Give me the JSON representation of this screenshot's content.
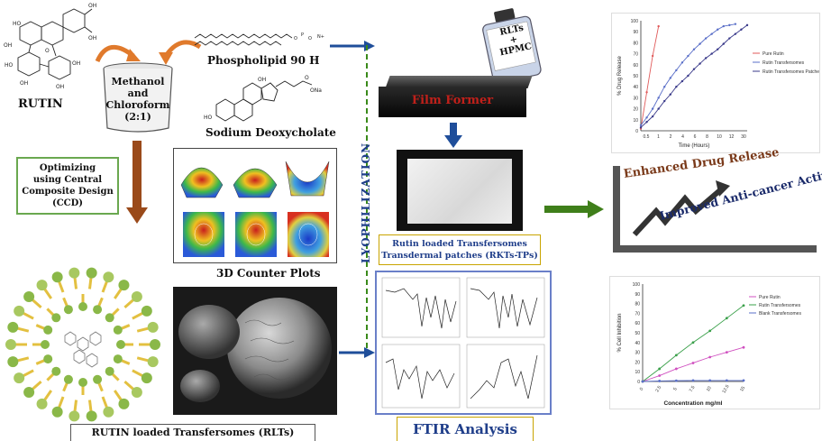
{
  "left": {
    "rutin_label": "RUTIN",
    "beaker_text": [
      "Methanol",
      "and",
      "Chloroform",
      "(2:1)"
    ],
    "phospholipid_label": "Phospholipid 90 H",
    "deoxycholate_label": "Sodium Deoxycholate",
    "ccd_box": [
      "Optimizing",
      "using Central",
      "Composite Design",
      "(CCD)"
    ],
    "contour_caption": "3D Counter Plots",
    "rlt_caption": "RUTIN loaded Transfersomes (RLTs)"
  },
  "middle": {
    "lyophilization_label": "LYOPHILIZATION",
    "bottle_text": [
      "RLTs",
      "+",
      "HPMC"
    ],
    "film_former_label": "Film Former",
    "patch_caption": [
      "Rutin loaded Transfersomes",
      "Transdermal patches (RKTs-TPs)"
    ],
    "ftir_label": "FTIR Analysis"
  },
  "right": {
    "enhanced_label": "Enhanced Drug Release",
    "anticancer_label": "Improved Anti-cancer Activity"
  },
  "colors": {
    "arrow_blue": "#1f4e9a",
    "arrow_orange": "#e07a2c",
    "arrow_brown": "#9a4a1a",
    "arrow_green": "#3f7f1a",
    "lyo_dash": "#3a8a1a",
    "ccd_border": "#6aa84f"
  },
  "chart_data": [
    {
      "type": "line",
      "xlabel": "Time (Hours)",
      "ylabel": "% Drug Release",
      "ylim": [
        0,
        100
      ],
      "xticks": [
        "0.5",
        "1",
        "2",
        "4",
        "6",
        "8",
        "10",
        "12",
        "30"
      ],
      "yticks": [
        0,
        10,
        20,
        30,
        40,
        50,
        60,
        70,
        80,
        90,
        100
      ],
      "series": [
        {
          "name": "Pure Rutin",
          "color": "#e05a5a",
          "x": [
            0,
            1,
            2,
            3
          ],
          "y": [
            2,
            35,
            68,
            95
          ]
        },
        {
          "name": "Rutin Transfersomes",
          "color": "#5a6fc8",
          "x": [
            0,
            1,
            2,
            3,
            4,
            5,
            6,
            7,
            8,
            9,
            10,
            11,
            12,
            13,
            14,
            15,
            16
          ],
          "y": [
            5,
            12,
            20,
            30,
            40,
            48,
            55,
            62,
            68,
            74,
            79,
            84,
            88,
            92,
            95,
            96,
            97
          ]
        },
        {
          "name": "Rutin Transfersomes Patches",
          "color": "#3a3a8a",
          "x": [
            0,
            1,
            2,
            3,
            4,
            5,
            6,
            7,
            8,
            9,
            10,
            11,
            12,
            13,
            14,
            15,
            16,
            17,
            18
          ],
          "y": [
            3,
            8,
            13,
            20,
            27,
            33,
            40,
            45,
            50,
            56,
            61,
            66,
            70,
            74,
            79,
            84,
            88,
            92,
            96
          ]
        }
      ]
    },
    {
      "type": "line",
      "xlabel": "Concentration mg/ml",
      "ylabel": "% Cell Inhibition",
      "ylim": [
        0,
        100
      ],
      "categories": [
        "0",
        "2.5",
        "5",
        "7.5",
        "10",
        "12.5",
        "15"
      ],
      "yticks": [
        0,
        10,
        20,
        30,
        40,
        50,
        60,
        70,
        80,
        90,
        100
      ],
      "series": [
        {
          "name": "Pure Rutin",
          "color": "#d050c0",
          "values": [
            0,
            6,
            13,
            19,
            25,
            30,
            35
          ]
        },
        {
          "name": "Rutin Transfersomes",
          "color": "#3aa04a",
          "values": [
            0,
            13,
            27,
            40,
            52,
            65,
            78
          ]
        },
        {
          "name": "Blank Transfersomes",
          "color": "#5a6fc8",
          "values": [
            0,
            0.5,
            0.8,
            1,
            1,
            1,
            1
          ]
        }
      ]
    }
  ]
}
